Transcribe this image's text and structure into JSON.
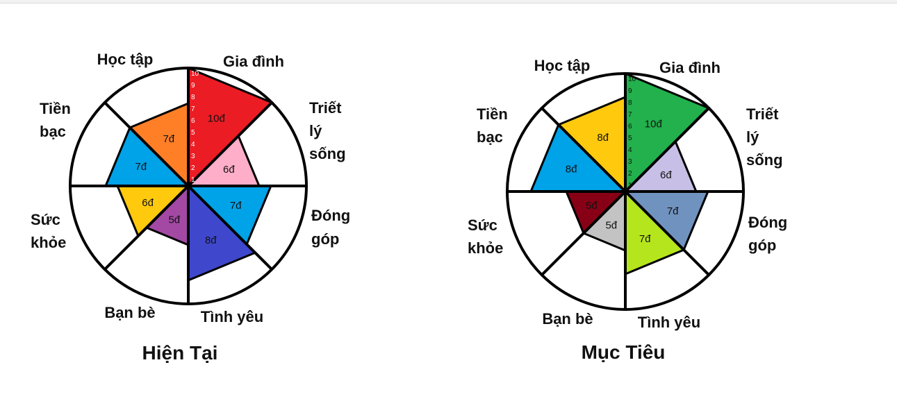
{
  "chart_data": [
    {
      "type": "radar-wheel",
      "title": "Hiện Tại",
      "ticks": [
        "1",
        "2",
        "3",
        "4",
        "5",
        "6",
        "7",
        "8",
        "9",
        "10"
      ],
      "max": 10,
      "segments": [
        {
          "category": "Gia đình",
          "value": 10,
          "label": "10đ",
          "color": "#ec1c24"
        },
        {
          "category": "Triết lý sống",
          "value": 6,
          "label": "6đ",
          "color": "#ffaec9"
        },
        {
          "category": "Đóng góp",
          "value": 7,
          "label": "7đ",
          "color": "#00a2e8"
        },
        {
          "category": "Tình yêu",
          "value": 8,
          "label": "8đ",
          "color": "#3f48cc"
        },
        {
          "category": "Bạn bè",
          "value": 5,
          "label": "5đ",
          "color": "#a349a4"
        },
        {
          "category": "Sức khỏe",
          "value": 6,
          "label": "6đ",
          "color": "#ffc90e"
        },
        {
          "category": "Tiền bạc",
          "value": 7,
          "label": "7đ",
          "color": "#00a2e8"
        },
        {
          "category": "Học tập",
          "value": 7,
          "label": "7đ",
          "color": "#ff7f27"
        }
      ]
    },
    {
      "type": "radar-wheel",
      "title": "Mục Tiêu",
      "ticks": [
        "1",
        "2",
        "3",
        "4",
        "5",
        "6",
        "7",
        "8",
        "9",
        "10"
      ],
      "max": 10,
      "segments": [
        {
          "category": "Gia đình",
          "value": 10,
          "label": "10đ",
          "color": "#22b14c"
        },
        {
          "category": "Triết lý sống",
          "value": 6,
          "label": "6đ",
          "color": "#c8bfe7"
        },
        {
          "category": "Đóng góp",
          "value": 7,
          "label": "7đ",
          "color": "#7092be"
        },
        {
          "category": "Tình yêu",
          "value": 7,
          "label": "7đ",
          "color": "#b5e61d"
        },
        {
          "category": "Bạn bè",
          "value": 5,
          "label": "5đ",
          "color": "#c3c3c3"
        },
        {
          "category": "Sức khỏe",
          "value": 5,
          "label": "5đ",
          "color": "#880015"
        },
        {
          "category": "Tiền bạc",
          "value": 8,
          "label": "8đ",
          "color": "#00a2e8"
        },
        {
          "category": "Học tập",
          "value": 8,
          "label": "8đ",
          "color": "#ffc90e"
        }
      ]
    }
  ],
  "labels": {
    "hoc_tap": "Học tập",
    "gia_dinh": "Gia đình",
    "triet_ly_song": [
      "Triết",
      "lý",
      "sống"
    ],
    "dong_gop": [
      "Đóng",
      "góp"
    ],
    "tinh_yeu": "Tình yêu",
    "ban_be": "Bạn bè",
    "suc_khoe": [
      "Sức",
      "khỏe"
    ],
    "tien_bac": [
      "Tiền",
      "bạc"
    ]
  }
}
